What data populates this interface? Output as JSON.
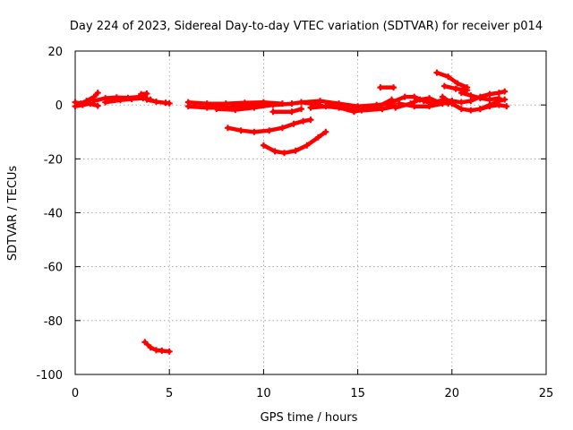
{
  "chart_data": {
    "type": "scatter",
    "title": "Day 224 of 2023, Sidereal Day-to-day VTEC variation (SDTVAR) for receiver p014",
    "xlabel": "GPS time / hours",
    "ylabel": "SDTVAR / TECUs",
    "xlim": [
      0,
      25
    ],
    "ylim": [
      -100,
      20
    ],
    "xticks": [
      0,
      5,
      10,
      15,
      20,
      25
    ],
    "yticks": [
      20,
      0,
      -20,
      -40,
      -60,
      -80,
      -100
    ],
    "grid": true,
    "series": [
      {
        "name": "SDTVAR",
        "color": "#ff0000",
        "tracks": [
          [
            [
              0.0,
              1.0
            ],
            [
              0.3,
              0.5
            ],
            [
              0.6,
              1.5
            ],
            [
              1.0,
              3.0
            ],
            [
              1.2,
              4.5
            ]
          ],
          [
            [
              0.0,
              -0.5
            ],
            [
              0.4,
              0.0
            ],
            [
              0.8,
              0.5
            ],
            [
              1.2,
              -0.3
            ]
          ],
          [
            [
              1.0,
              1.5
            ],
            [
              1.6,
              2.5
            ],
            [
              2.2,
              2.8
            ],
            [
              2.8,
              2.6
            ],
            [
              3.4,
              3.0
            ],
            [
              3.7,
              3.5
            ]
          ],
          [
            [
              1.6,
              1.0
            ],
            [
              2.4,
              1.8
            ],
            [
              3.0,
              2.2
            ],
            [
              3.6,
              2.5
            ],
            [
              4.0,
              2.0
            ]
          ],
          [
            [
              3.5,
              4.0
            ],
            [
              3.8,
              4.2
            ]
          ],
          [
            [
              3.8,
              2.0
            ],
            [
              4.3,
              1.2
            ],
            [
              4.8,
              0.8
            ],
            [
              5.0,
              0.6
            ]
          ],
          [
            [
              6.0,
              -0.5
            ],
            [
              7.0,
              -1.0
            ],
            [
              8.0,
              -1.0
            ],
            [
              9.0,
              -0.5
            ],
            [
              10.0,
              0.0
            ]
          ],
          [
            [
              6.0,
              1.0
            ],
            [
              7.0,
              0.5
            ],
            [
              8.0,
              0.5
            ],
            [
              9.0,
              0.8
            ],
            [
              10.0,
              1.0
            ],
            [
              11.0,
              0.5
            ]
          ],
          [
            [
              7.5,
              -1.5
            ],
            [
              8.5,
              -1.8
            ],
            [
              9.5,
              -1.0
            ],
            [
              10.5,
              0.0
            ],
            [
              11.5,
              0.5
            ],
            [
              12.0,
              1.0
            ],
            [
              13.0,
              0.0
            ]
          ],
          [
            [
              10.5,
              -2.5
            ],
            [
              11.5,
              -2.5
            ],
            [
              12.0,
              -1.5
            ]
          ],
          [
            [
              8.1,
              -8.5
            ],
            [
              8.8,
              -9.5
            ],
            [
              9.5,
              -10.0
            ],
            [
              10.3,
              -9.5
            ],
            [
              11.0,
              -8.5
            ],
            [
              11.6,
              -7.0
            ],
            [
              12.1,
              -6.0
            ],
            [
              12.5,
              -5.5
            ]
          ],
          [
            [
              10.0,
              -15.0
            ],
            [
              10.6,
              -17.2
            ],
            [
              11.1,
              -17.8
            ],
            [
              11.7,
              -17.0
            ],
            [
              12.3,
              -15.0
            ],
            [
              12.9,
              -12.0
            ],
            [
              13.3,
              -10.0
            ]
          ],
          [
            [
              12.5,
              -1.0
            ],
            [
              13.3,
              -0.5
            ],
            [
              14.0,
              -1.0
            ],
            [
              14.8,
              -2.5
            ],
            [
              15.5,
              -1.5
            ],
            [
              16.1,
              -0.5
            ],
            [
              16.8,
              2.0
            ]
          ],
          [
            [
              12.0,
              1.0
            ],
            [
              13.0,
              1.5
            ],
            [
              14.0,
              0.5
            ],
            [
              15.0,
              -0.5
            ],
            [
              16.0,
              0.0
            ],
            [
              16.8,
              0.5
            ]
          ],
          [
            [
              13.5,
              0.0
            ],
            [
              14.5,
              -1.5
            ],
            [
              15.2,
              -2.0
            ],
            [
              16.3,
              -1.5
            ],
            [
              17.0,
              -0.5
            ]
          ],
          [
            [
              16.2,
              6.5
            ],
            [
              16.9,
              6.5
            ]
          ],
          [
            [
              16.8,
              1.0
            ],
            [
              17.5,
              3.0
            ],
            [
              18.0,
              3.0
            ],
            [
              18.5,
              1.5
            ],
            [
              19.0,
              0.5
            ],
            [
              19.5,
              1.0
            ]
          ],
          [
            [
              17.0,
              -1.0
            ],
            [
              17.8,
              0.5
            ],
            [
              18.3,
              2.0
            ],
            [
              18.8,
              2.5
            ],
            [
              19.3,
              1.0
            ],
            [
              19.8,
              0.5
            ]
          ],
          [
            [
              17.2,
              0.5
            ],
            [
              18.0,
              -0.5
            ],
            [
              18.8,
              -0.5
            ],
            [
              19.5,
              0.5
            ],
            [
              20.0,
              1.5
            ]
          ],
          [
            [
              19.2,
              12.0
            ],
            [
              19.8,
              10.5
            ],
            [
              20.3,
              8.0
            ],
            [
              20.8,
              6.5
            ]
          ],
          [
            [
              19.6,
              7.0
            ],
            [
              20.2,
              6.0
            ],
            [
              20.8,
              5.5
            ]
          ],
          [
            [
              19.5,
              2.0
            ],
            [
              20.0,
              1.5
            ],
            [
              20.5,
              1.0
            ],
            [
              21.0,
              1.5
            ],
            [
              21.5,
              3.0
            ],
            [
              22.0,
              4.0
            ],
            [
              22.5,
              4.5
            ],
            [
              22.8,
              5.0
            ]
          ],
          [
            [
              19.5,
              3.0
            ],
            [
              20.0,
              0.5
            ],
            [
              20.5,
              -1.5
            ],
            [
              21.0,
              -2.0
            ],
            [
              21.5,
              -1.5
            ],
            [
              22.0,
              0.0
            ],
            [
              22.5,
              1.5
            ],
            [
              22.8,
              2.0
            ]
          ],
          [
            [
              20.5,
              4.5
            ],
            [
              21.0,
              3.5
            ],
            [
              21.5,
              2.5
            ],
            [
              22.0,
              2.0
            ],
            [
              22.5,
              2.5
            ]
          ],
          [
            [
              21.5,
              -1.5
            ],
            [
              22.0,
              -0.5
            ],
            [
              22.5,
              0.0
            ],
            [
              22.9,
              -0.5
            ]
          ],
          [
            [
              3.7,
              -88.0
            ],
            [
              4.0,
              -90.0
            ],
            [
              4.3,
              -91.0
            ],
            [
              4.6,
              -91.2
            ],
            [
              5.0,
              -91.5
            ]
          ]
        ]
      }
    ]
  }
}
